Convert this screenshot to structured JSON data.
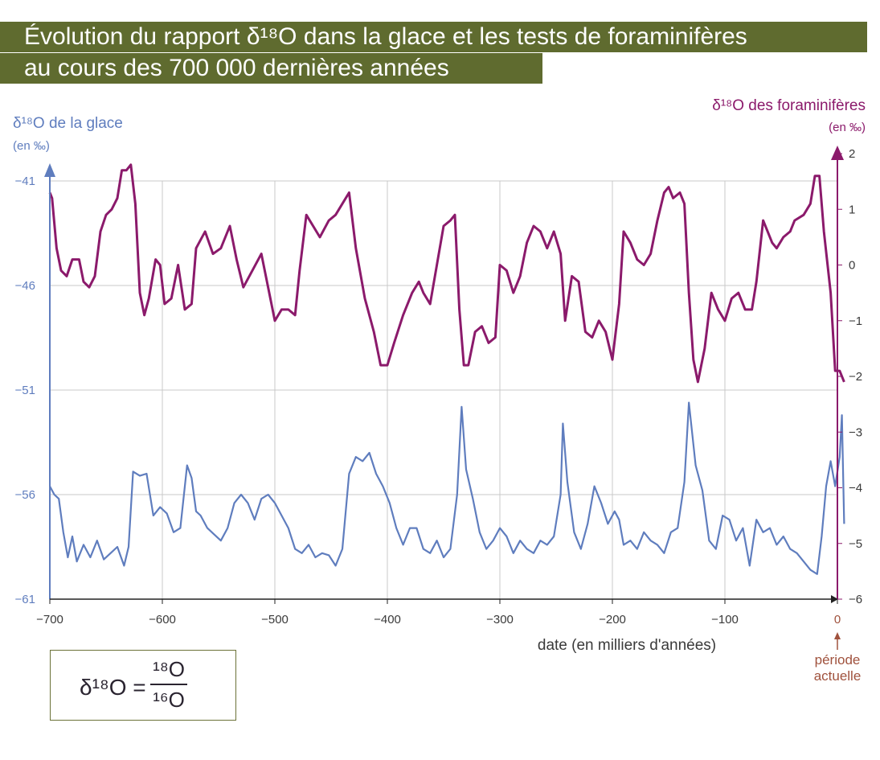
{
  "header": {
    "title_line1": "Évolution du rapport δ¹⁸O dans la glace et les tests de foraminifères",
    "title_line2": "au cours des 700 000 dernières années"
  },
  "formula": {
    "lhs": "δ¹⁸O =",
    "numerator": "¹⁸O",
    "denominator": "¹⁶O"
  },
  "annotation": {
    "line1": "période",
    "line2": "actuelle"
  },
  "colors": {
    "ice": "#5f7dbe",
    "forams": "#8b1a6b",
    "grid": "#c8c8c8",
    "title_bg": "#5f6b2f",
    "annotation": "#a0523d",
    "text": "#3a3a3a"
  },
  "chart_data": {
    "type": "line",
    "xlabel": "date (en milliers d'années)",
    "x_ticks": [
      -700,
      -600,
      -500,
      -400,
      -300,
      -200,
      -100,
      0
    ],
    "xlim": [
      -700,
      0
    ],
    "y_left": {
      "label": "δ¹⁸O de la glace",
      "unit": "(en ‰)",
      "ticks": [
        -41,
        -46,
        -51,
        -56,
        -61
      ],
      "range": [
        -61,
        -41
      ]
    },
    "y_right": {
      "label": "δ¹⁸O des foraminifères",
      "unit": "(en ‰)",
      "ticks": [
        2,
        1,
        0,
        -1,
        -2,
        -3,
        -4,
        -5,
        -6
      ],
      "range": [
        -6,
        2
      ]
    },
    "grid": true,
    "series": [
      {
        "axis": "right",
        "points": [
          [
            -700,
            1.3
          ],
          [
            -698,
            1.2
          ],
          [
            -694,
            0.3
          ],
          [
            -690,
            -0.1
          ],
          [
            -685,
            -0.2
          ],
          [
            -680,
            0.1
          ],
          [
            -674,
            0.1
          ],
          [
            -670,
            -0.3
          ],
          [
            -665,
            -0.4
          ],
          [
            -660,
            -0.2
          ],
          [
            -655,
            0.6
          ],
          [
            -650,
            0.9
          ],
          [
            -645,
            1.0
          ],
          [
            -640,
            1.2
          ],
          [
            -636,
            1.7
          ],
          [
            -632,
            1.7
          ],
          [
            -628,
            1.8
          ],
          [
            -624,
            1.1
          ],
          [
            -620,
            -0.5
          ],
          [
            -616,
            -0.9
          ],
          [
            -612,
            -0.6
          ],
          [
            -606,
            0.1
          ],
          [
            -602,
            0.0
          ],
          [
            -598,
            -0.7
          ],
          [
            -592,
            -0.6
          ],
          [
            -586,
            0.0
          ],
          [
            -580,
            -0.8
          ],
          [
            -574,
            -0.7
          ],
          [
            -570,
            0.3
          ],
          [
            -562,
            0.6
          ],
          [
            -555,
            0.2
          ],
          [
            -548,
            0.3
          ],
          [
            -540,
            0.7
          ],
          [
            -534,
            0.1
          ],
          [
            -528,
            -0.4
          ],
          [
            -520,
            -0.1
          ],
          [
            -512,
            0.2
          ],
          [
            -506,
            -0.4
          ],
          [
            -500,
            -1.0
          ],
          [
            -494,
            -0.8
          ],
          [
            -488,
            -0.8
          ],
          [
            -482,
            -0.9
          ],
          [
            -478,
            -0.1
          ],
          [
            -472,
            0.9
          ],
          [
            -466,
            0.7
          ],
          [
            -460,
            0.5
          ],
          [
            -452,
            0.8
          ],
          [
            -446,
            0.9
          ],
          [
            -440,
            1.1
          ],
          [
            -434,
            1.3
          ],
          [
            -428,
            0.3
          ],
          [
            -420,
            -0.6
          ],
          [
            -412,
            -1.2
          ],
          [
            -406,
            -1.8
          ],
          [
            -400,
            -1.8
          ],
          [
            -394,
            -1.4
          ],
          [
            -386,
            -0.9
          ],
          [
            -378,
            -0.5
          ],
          [
            -372,
            -0.3
          ],
          [
            -368,
            -0.5
          ],
          [
            -362,
            -0.7
          ],
          [
            -356,
            0.0
          ],
          [
            -350,
            0.7
          ],
          [
            -344,
            0.8
          ],
          [
            -340,
            0.9
          ],
          [
            -336,
            -0.8
          ],
          [
            -332,
            -1.8
          ],
          [
            -328,
            -1.8
          ],
          [
            -322,
            -1.2
          ],
          [
            -316,
            -1.1
          ],
          [
            -310,
            -1.4
          ],
          [
            -304,
            -1.3
          ],
          [
            -300,
            0.0
          ],
          [
            -294,
            -0.1
          ],
          [
            -288,
            -0.5
          ],
          [
            -282,
            -0.2
          ],
          [
            -276,
            0.4
          ],
          [
            -270,
            0.7
          ],
          [
            -264,
            0.6
          ],
          [
            -258,
            0.3
          ],
          [
            -252,
            0.6
          ],
          [
            -246,
            0.2
          ],
          [
            -242,
            -1.0
          ],
          [
            -236,
            -0.2
          ],
          [
            -230,
            -0.3
          ],
          [
            -224,
            -1.2
          ],
          [
            -218,
            -1.3
          ],
          [
            -212,
            -1.0
          ],
          [
            -206,
            -1.2
          ],
          [
            -200,
            -1.7
          ],
          [
            -194,
            -0.7
          ],
          [
            -190,
            0.6
          ],
          [
            -184,
            0.4
          ],
          [
            -178,
            0.1
          ],
          [
            -172,
            -0.0
          ],
          [
            -166,
            0.2
          ],
          [
            -160,
            0.8
          ],
          [
            -154,
            1.3
          ],
          [
            -150,
            1.4
          ],
          [
            -146,
            1.2
          ],
          [
            -140,
            1.3
          ],
          [
            -136,
            1.1
          ],
          [
            -132,
            -0.5
          ],
          [
            -128,
            -1.7
          ],
          [
            -124,
            -2.1
          ],
          [
            -118,
            -1.5
          ],
          [
            -112,
            -0.5
          ],
          [
            -106,
            -0.8
          ],
          [
            -100,
            -1.0
          ],
          [
            -94,
            -0.6
          ],
          [
            -88,
            -0.5
          ],
          [
            -82,
            -0.8
          ],
          [
            -76,
            -0.8
          ],
          [
            -72,
            -0.3
          ],
          [
            -66,
            0.8
          ],
          [
            -62,
            0.6
          ],
          [
            -58,
            0.4
          ],
          [
            -54,
            0.3
          ],
          [
            -48,
            0.5
          ],
          [
            -42,
            0.6
          ],
          [
            -38,
            0.8
          ],
          [
            -30,
            0.9
          ],
          [
            -24,
            1.1
          ],
          [
            -20,
            1.6
          ],
          [
            -16,
            1.6
          ],
          [
            -12,
            0.6
          ],
          [
            -6,
            -0.5
          ],
          [
            -2,
            -1.9
          ],
          [
            2,
            -1.9
          ],
          [
            6,
            -2.1
          ]
        ]
      },
      {
        "axis": "left",
        "points": [
          [
            -700,
            -55.6
          ],
          [
            -696,
            -56.0
          ],
          [
            -692,
            -56.2
          ],
          [
            -688,
            -57.8
          ],
          [
            -684,
            -59.0
          ],
          [
            -680,
            -58.0
          ],
          [
            -676,
            -59.2
          ],
          [
            -670,
            -58.4
          ],
          [
            -664,
            -59.0
          ],
          [
            -658,
            -58.2
          ],
          [
            -652,
            -59.1
          ],
          [
            -646,
            -58.8
          ],
          [
            -640,
            -58.5
          ],
          [
            -634,
            -59.4
          ],
          [
            -630,
            -58.5
          ],
          [
            -626,
            -54.9
          ],
          [
            -620,
            -55.1
          ],
          [
            -614,
            -55.0
          ],
          [
            -608,
            -57.0
          ],
          [
            -602,
            -56.6
          ],
          [
            -596,
            -56.9
          ],
          [
            -590,
            -57.8
          ],
          [
            -584,
            -57.6
          ],
          [
            -578,
            -54.6
          ],
          [
            -574,
            -55.2
          ],
          [
            -570,
            -56.8
          ],
          [
            -566,
            -57.0
          ],
          [
            -560,
            -57.6
          ],
          [
            -554,
            -57.9
          ],
          [
            -548,
            -58.2
          ],
          [
            -542,
            -57.6
          ],
          [
            -536,
            -56.4
          ],
          [
            -530,
            -56.0
          ],
          [
            -524,
            -56.4
          ],
          [
            -518,
            -57.2
          ],
          [
            -512,
            -56.2
          ],
          [
            -506,
            -56.0
          ],
          [
            -500,
            -56.4
          ],
          [
            -494,
            -57.0
          ],
          [
            -488,
            -57.6
          ],
          [
            -482,
            -58.6
          ],
          [
            -476,
            -58.8
          ],
          [
            -470,
            -58.4
          ],
          [
            -464,
            -59.0
          ],
          [
            -458,
            -58.8
          ],
          [
            -452,
            -58.9
          ],
          [
            -446,
            -59.4
          ],
          [
            -440,
            -58.6
          ],
          [
            -434,
            -55.0
          ],
          [
            -428,
            -54.2
          ],
          [
            -422,
            -54.4
          ],
          [
            -416,
            -54.0
          ],
          [
            -410,
            -55.0
          ],
          [
            -404,
            -55.6
          ],
          [
            -398,
            -56.4
          ],
          [
            -392,
            -57.6
          ],
          [
            -386,
            -58.4
          ],
          [
            -380,
            -57.6
          ],
          [
            -374,
            -57.6
          ],
          [
            -368,
            -58.6
          ],
          [
            -362,
            -58.8
          ],
          [
            -356,
            -58.2
          ],
          [
            -350,
            -59.0
          ],
          [
            -344,
            -58.6
          ],
          [
            -338,
            -56.0
          ],
          [
            -334,
            -51.8
          ],
          [
            -330,
            -54.8
          ],
          [
            -324,
            -56.2
          ],
          [
            -318,
            -57.8
          ],
          [
            -312,
            -58.6
          ],
          [
            -306,
            -58.2
          ],
          [
            -300,
            -57.6
          ],
          [
            -294,
            -58.0
          ],
          [
            -288,
            -58.8
          ],
          [
            -282,
            -58.2
          ],
          [
            -276,
            -58.6
          ],
          [
            -270,
            -58.8
          ],
          [
            -264,
            -58.2
          ],
          [
            -258,
            -58.4
          ],
          [
            -252,
            -58.0
          ],
          [
            -246,
            -56.0
          ],
          [
            -244,
            -52.6
          ],
          [
            -240,
            -55.4
          ],
          [
            -234,
            -57.8
          ],
          [
            -228,
            -58.6
          ],
          [
            -222,
            -57.4
          ],
          [
            -216,
            -55.6
          ],
          [
            -210,
            -56.4
          ],
          [
            -204,
            -57.4
          ],
          [
            -198,
            -56.8
          ],
          [
            -194,
            -57.2
          ],
          [
            -190,
            -58.4
          ],
          [
            -184,
            -58.2
          ],
          [
            -178,
            -58.6
          ],
          [
            -172,
            -57.8
          ],
          [
            -166,
            -58.2
          ],
          [
            -160,
            -58.4
          ],
          [
            -154,
            -58.8
          ],
          [
            -148,
            -57.8
          ],
          [
            -142,
            -57.6
          ],
          [
            -136,
            -55.4
          ],
          [
            -132,
            -51.6
          ],
          [
            -126,
            -54.6
          ],
          [
            -120,
            -55.8
          ],
          [
            -114,
            -58.2
          ],
          [
            -108,
            -58.6
          ],
          [
            -102,
            -57.0
          ],
          [
            -96,
            -57.2
          ],
          [
            -90,
            -58.2
          ],
          [
            -84,
            -57.6
          ],
          [
            -78,
            -59.4
          ],
          [
            -72,
            -57.2
          ],
          [
            -66,
            -57.8
          ],
          [
            -60,
            -57.6
          ],
          [
            -54,
            -58.4
          ],
          [
            -48,
            -58.0
          ],
          [
            -42,
            -58.6
          ],
          [
            -36,
            -58.8
          ],
          [
            -30,
            -59.2
          ],
          [
            -24,
            -59.6
          ],
          [
            -18,
            -59.8
          ],
          [
            -14,
            -58.0
          ],
          [
            -10,
            -55.6
          ],
          [
            -6,
            -54.4
          ],
          [
            -2,
            -55.6
          ],
          [
            2,
            -54.2
          ],
          [
            4,
            -52.2
          ],
          [
            6,
            -57.4
          ]
        ]
      }
    ]
  }
}
